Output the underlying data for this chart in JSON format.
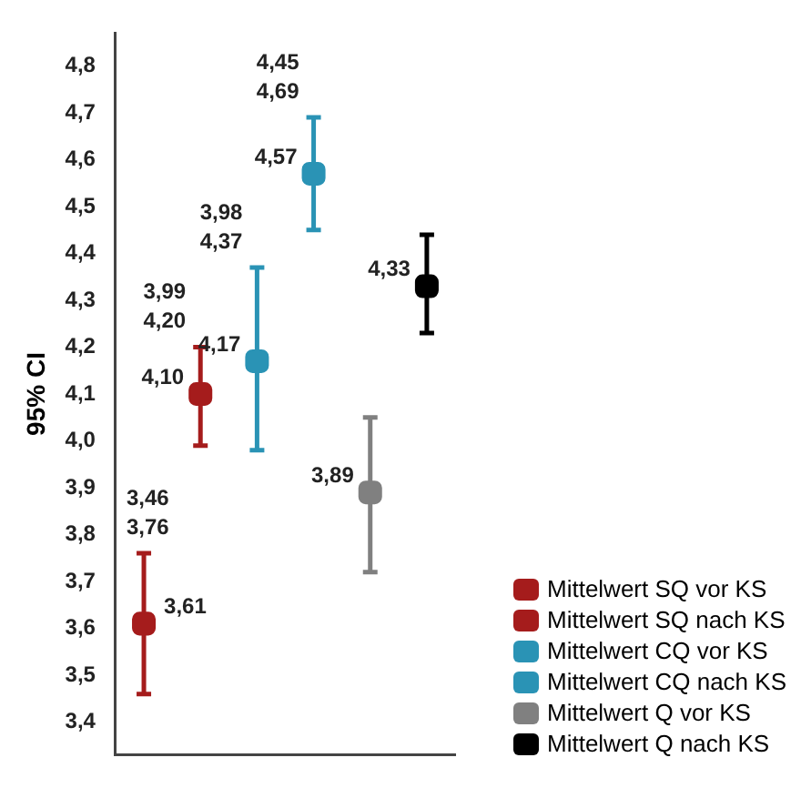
{
  "chart_data": {
    "type": "scatter",
    "ylabel": "95% CI",
    "categories": [
      null,
      null,
      null,
      null,
      null,
      null
    ],
    "marker": "square",
    "grid": false,
    "legend": "bottom right",
    "tick_labels": "y",
    "ylim": [
      3.33,
      4.87
    ],
    "yticks": [
      {
        "value": 3.4,
        "label": "3,4"
      },
      {
        "value": 3.5,
        "label": "3,5"
      },
      {
        "value": 3.6,
        "label": "3,6"
      },
      {
        "value": 3.7,
        "label": "3,7"
      },
      {
        "value": 3.8,
        "label": "3,8"
      },
      {
        "value": 3.9,
        "label": "3,9"
      },
      {
        "value": 4.0,
        "label": "4,0"
      },
      {
        "value": 4.1,
        "label": "4,1"
      },
      {
        "value": 4.2,
        "label": "4,2"
      },
      {
        "value": 4.3,
        "label": "4,3"
      },
      {
        "value": 4.4,
        "label": "4,4"
      },
      {
        "value": 4.5,
        "label": "4,5"
      },
      {
        "value": 4.6,
        "label": "4,6"
      },
      {
        "value": 4.7,
        "label": "4,7"
      },
      {
        "value": 4.8,
        "label": "4,8"
      }
    ],
    "series": [
      {
        "name": "Mittelwert SQ vor KS",
        "color": "#a51c1c",
        "values": [
          3.61,
          null,
          null,
          null,
          null,
          null
        ],
        "errors": [
          [
            3.46,
            3.76
          ],
          null,
          null,
          null,
          null,
          null
        ],
        "value_labels": [
          "3,61",
          null,
          null,
          null,
          null,
          null
        ]
      },
      {
        "name": "Mittelwert SQ nach KS",
        "color": "#a51c1c",
        "values": [
          null,
          4.1,
          null,
          null,
          null,
          null
        ],
        "errors": [
          null,
          [
            3.99,
            4.2
          ],
          null,
          null,
          null,
          null
        ],
        "value_labels": [
          null,
          "4,10",
          null,
          null,
          null,
          null
        ]
      },
      {
        "name": "Mittelwert CQ vor KS",
        "color": "#2a93b5",
        "values": [
          null,
          null,
          4.17,
          null,
          null,
          null
        ],
        "errors": [
          null,
          null,
          [
            3.98,
            4.37
          ],
          null,
          null,
          null
        ],
        "value_labels": [
          null,
          null,
          "4,17",
          null,
          null,
          null
        ]
      },
      {
        "name": "Mittelwert CQ nach KS",
        "color": "#2a93b5",
        "values": [
          null,
          null,
          null,
          4.57,
          null,
          null
        ],
        "errors": [
          null,
          null,
          null,
          [
            4.45,
            4.69
          ],
          null,
          null
        ],
        "value_labels": [
          null,
          null,
          null,
          "4,57",
          null,
          null
        ]
      },
      {
        "name": "Mittelwert Q vor KS",
        "color": "#808080",
        "values": [
          null,
          null,
          null,
          null,
          3.89,
          null
        ],
        "errors": [
          null,
          null,
          null,
          null,
          [
            3.72,
            4.05
          ],
          null
        ],
        "value_labels": [
          null,
          null,
          null,
          null,
          "3,89",
          null
        ]
      },
      {
        "name": "Mittelwert Q nach KS",
        "color": "#000000",
        "values": [
          null,
          null,
          null,
          null,
          null,
          4.33
        ],
        "errors": [
          null,
          null,
          null,
          null,
          null,
          [
            4.23,
            4.44
          ]
        ],
        "value_labels": [
          null,
          null,
          null,
          null,
          null,
          "4,33"
        ]
      }
    ],
    "annotations": [
      "3,46\n3,76",
      "3,99\n4,20",
      "3,98\n4,37",
      "4,45\n4,69"
    ]
  }
}
